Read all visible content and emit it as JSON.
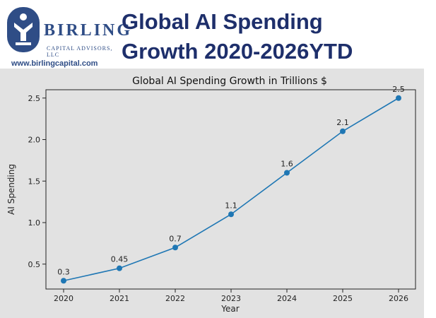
{
  "header": {
    "logo_name": "BIRLING",
    "logo_sub": "CAPITAL ADVISORS, LLC",
    "website": "www.birlingcapital.com",
    "headline_line1": "Global AI Spending",
    "headline_line2": "Growth 2020-2026YTD"
  },
  "colors": {
    "brand": "#2f4d86",
    "headline": "#1e2f6b",
    "line": "#1f77b4",
    "plot_bg": "#e2e2e2"
  },
  "chart_data": {
    "type": "line",
    "title": "Global AI Spending Growth in Trillions $",
    "xlabel": "Year",
    "ylabel": "AI Spending",
    "x": [
      "2020",
      "2021",
      "2022",
      "2023",
      "2024",
      "2025",
      "2026"
    ],
    "y_ticks": [
      "0.5",
      "1.0",
      "1.5",
      "2.0",
      "2.5"
    ],
    "series": [
      {
        "values": [
          0.3,
          0.45,
          0.7,
          1.1,
          1.6,
          2.1,
          2.5
        ]
      }
    ],
    "data_labels": [
      "0.3",
      "0.45",
      "0.7",
      "1.1",
      "1.6",
      "2.1",
      "2.5"
    ],
    "ylim": [
      0.2,
      2.6
    ],
    "grid": false,
    "legend": "none"
  }
}
